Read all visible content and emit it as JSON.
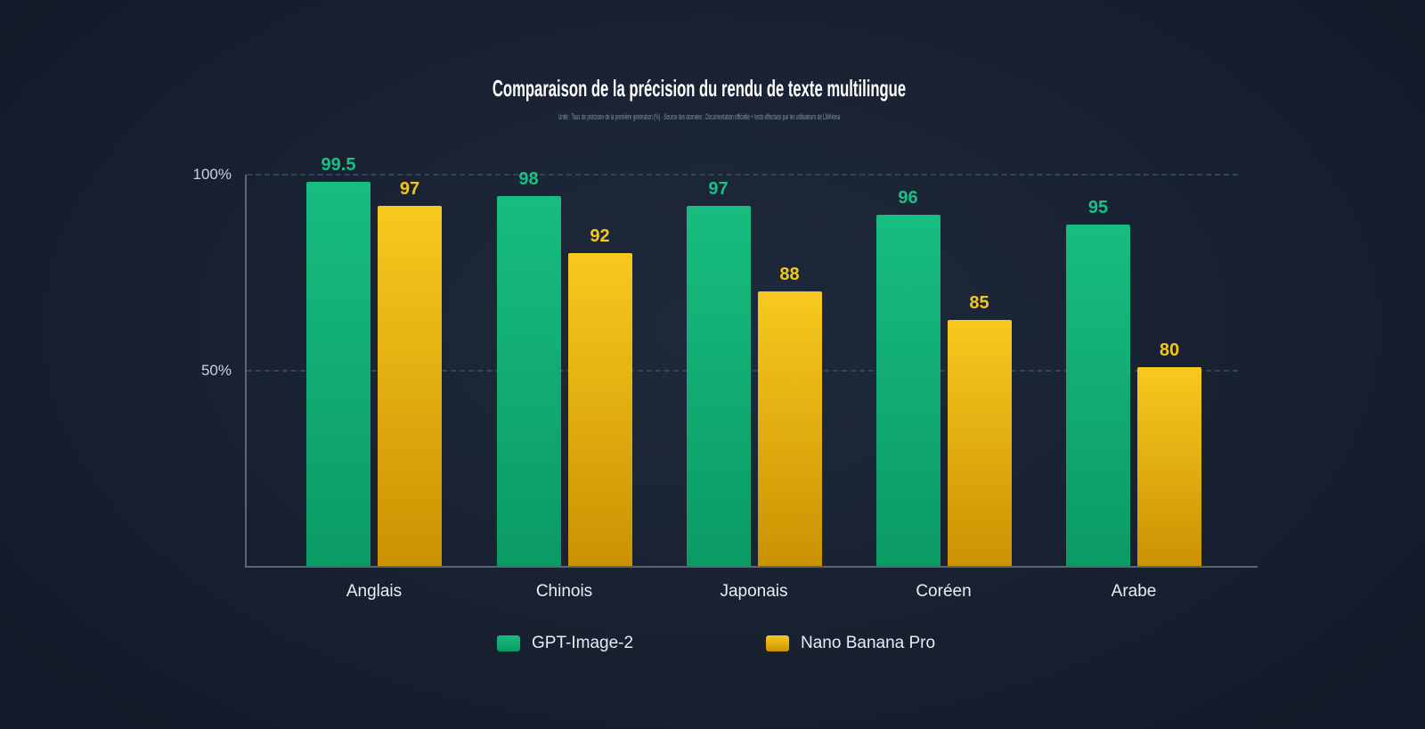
{
  "page": {
    "background_center": "#1e2a3c",
    "background_edge": "#111827"
  },
  "chart_data": {
    "type": "bar",
    "title": "Comparaison de la précision du rendu de texte multilingue",
    "subtitle": "Unité : Taux de précision de la première génération (%) · Source des données : Documentation officielle + tests effectués par les utilisateurs de LMArena",
    "categories": [
      "Anglais",
      "Chinois",
      "Japonais",
      "Coréen",
      "Arabe"
    ],
    "series": [
      {
        "name": "GPT-Image-2",
        "values": [
          99.5,
          98,
          97,
          96,
          95
        ],
        "color_top": "#17bd80",
        "color_bottom": "#0b9a66",
        "label_color": "#1dbd86"
      },
      {
        "name": "Nano Banana Pro",
        "values": [
          97,
          92,
          88,
          85,
          80
        ],
        "color_top": "#f7c91e",
        "color_bottom": "#cb9202",
        "label_color": "#f5c51a"
      }
    ],
    "value_labels": [
      [
        "99.5",
        "97"
      ],
      [
        "98",
        "92"
      ],
      [
        "97",
        "88"
      ],
      [
        "96",
        "85"
      ],
      [
        "95",
        "80"
      ]
    ],
    "y_ticks": [
      {
        "label": "100%",
        "value": 100
      },
      {
        "label": "50%",
        "value": 50
      }
    ],
    "ylim": [
      0,
      100
    ],
    "grid": "dashed-horizontal",
    "legend_position": "bottom",
    "colors": {
      "title": "#ffffff",
      "subtitle": "#7f93a9",
      "tick_label": "#c9d3e0",
      "category_label": "#e9edf4",
      "legend_text": "#e6ecf4",
      "axis": "#5b6577",
      "gridline": "#3d4f63"
    }
  }
}
